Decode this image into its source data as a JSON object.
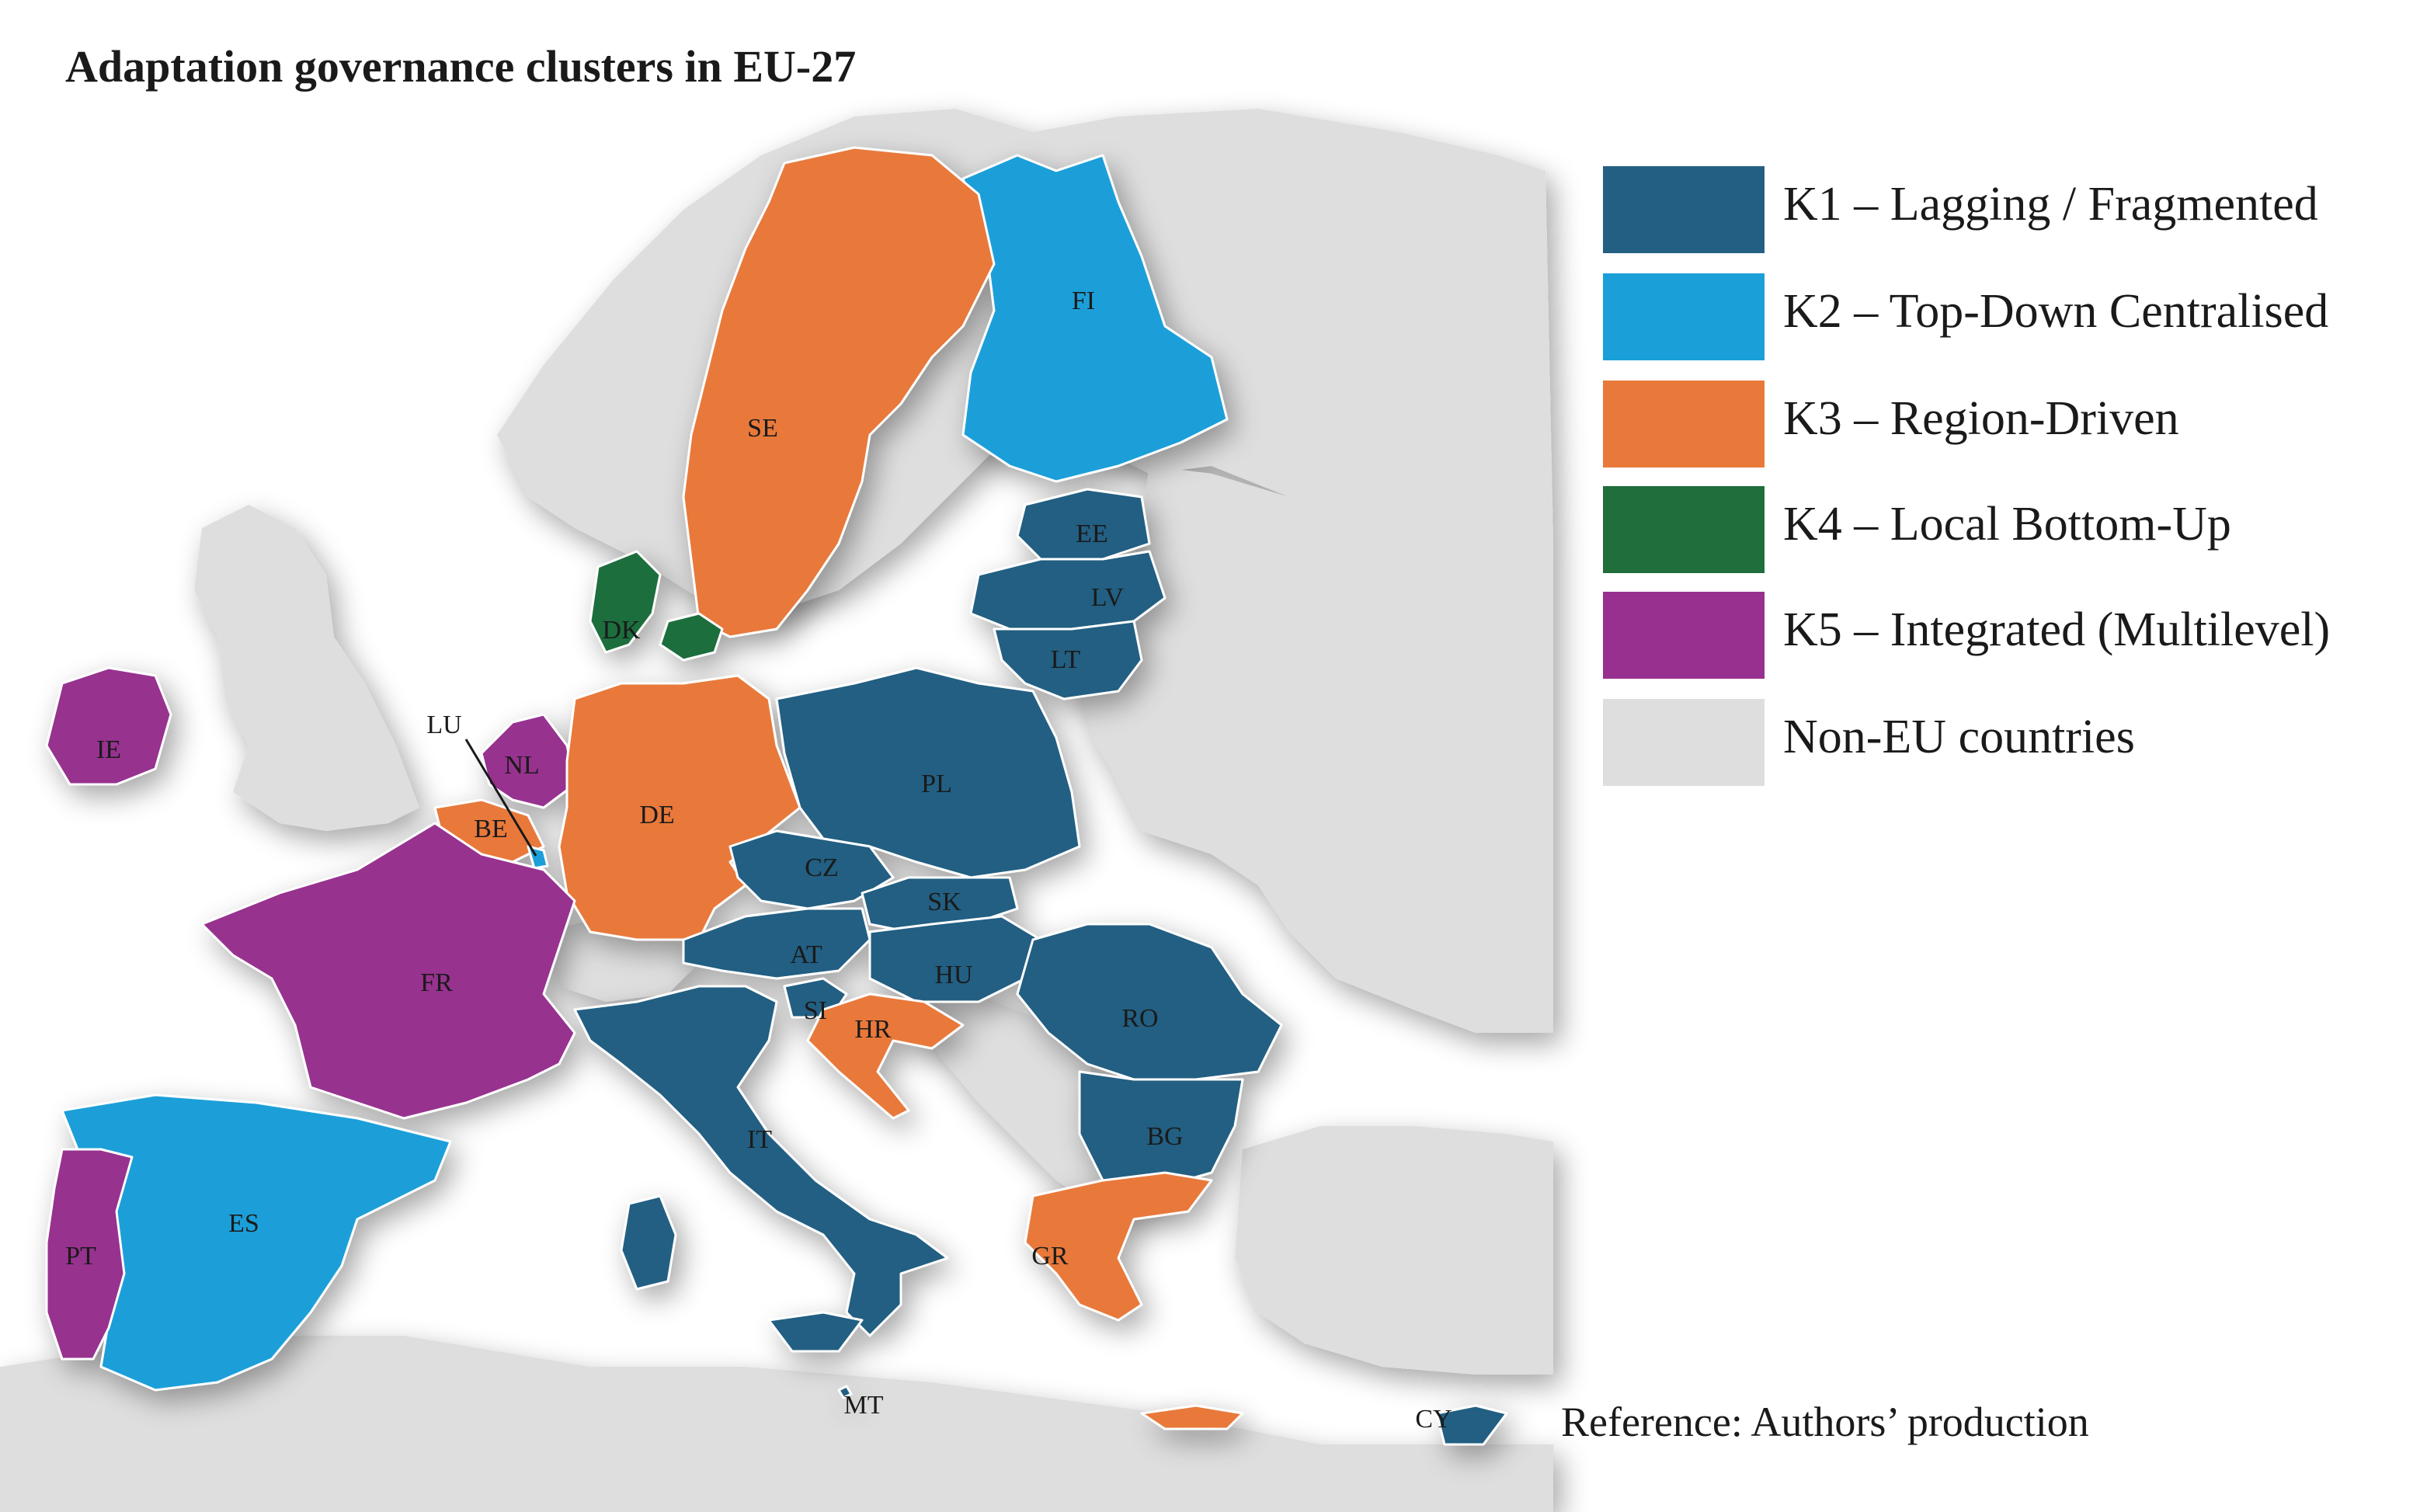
{
  "title": "Adaptation governance clusters in EU-27",
  "colors": {
    "K1": "#235f82",
    "K2": "#1a9fd9",
    "K3": "#e8793a",
    "K4": "#1f6e3c",
    "K5": "#97308f",
    "nonEU": "#dedede",
    "sea": "#ffffff",
    "border": "#ffffff"
  },
  "legend": [
    {
      "id": "K1",
      "label": "K1 – Lagging / Fragmented"
    },
    {
      "id": "K2",
      "label": "K2 – Top-Down Centralised"
    },
    {
      "id": "K3",
      "label": "K3 – Region-Driven"
    },
    {
      "id": "K4",
      "label": "K4 – Local Bottom-Up"
    },
    {
      "id": "K5",
      "label": "K5 – Integrated (Multilevel)"
    },
    {
      "id": "nonEU",
      "label": "Non-EU countries"
    }
  ],
  "countries": [
    {
      "code": "FI",
      "cluster": "K2"
    },
    {
      "code": "SE",
      "cluster": "K3"
    },
    {
      "code": "EE",
      "cluster": "K1"
    },
    {
      "code": "LV",
      "cluster": "K1"
    },
    {
      "code": "LT",
      "cluster": "K1"
    },
    {
      "code": "DK",
      "cluster": "K4"
    },
    {
      "code": "IE",
      "cluster": "K5"
    },
    {
      "code": "NL",
      "cluster": "K5"
    },
    {
      "code": "LU",
      "cluster": "K2"
    },
    {
      "code": "BE",
      "cluster": "K3"
    },
    {
      "code": "DE",
      "cluster": "K3"
    },
    {
      "code": "PL",
      "cluster": "K1"
    },
    {
      "code": "CZ",
      "cluster": "K1"
    },
    {
      "code": "SK",
      "cluster": "K1"
    },
    {
      "code": "AT",
      "cluster": "K1"
    },
    {
      "code": "HU",
      "cluster": "K1"
    },
    {
      "code": "FR",
      "cluster": "K5"
    },
    {
      "code": "SI",
      "cluster": "K1"
    },
    {
      "code": "HR",
      "cluster": "K3"
    },
    {
      "code": "RO",
      "cluster": "K1"
    },
    {
      "code": "BG",
      "cluster": "K1"
    },
    {
      "code": "IT",
      "cluster": "K1"
    },
    {
      "code": "ES",
      "cluster": "K2"
    },
    {
      "code": "PT",
      "cluster": "K5"
    },
    {
      "code": "GR",
      "cluster": "K3"
    },
    {
      "code": "MT",
      "cluster": "K1"
    },
    {
      "code": "CY",
      "cluster": "K1"
    }
  ],
  "reference": "Reference: Authors’ production"
}
